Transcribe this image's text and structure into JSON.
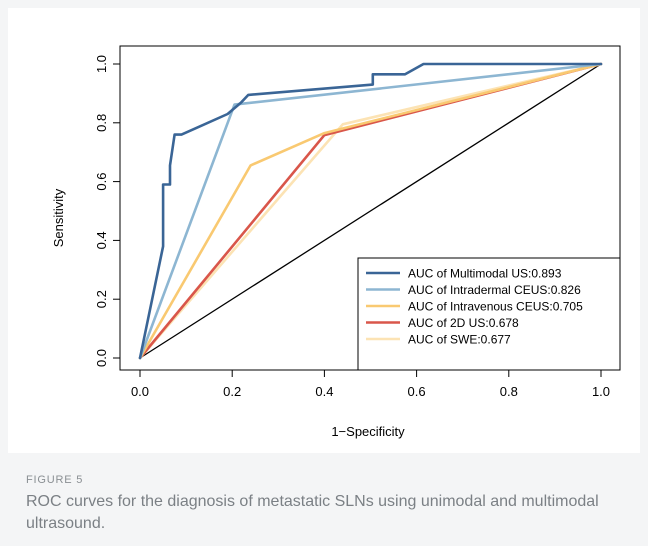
{
  "figure": {
    "label": "FIGURE 5",
    "caption": "ROC curves for the diagnosis of metastatic SLNs using unimodal and multimodal ultrasound."
  },
  "chart_data": {
    "type": "line",
    "xlabel": "1−Specificity",
    "ylabel": "Sensitivity",
    "xlim": [
      0,
      1
    ],
    "ylim": [
      0,
      1
    ],
    "xticks": [
      0.0,
      0.2,
      0.4,
      0.6,
      0.8,
      1.0
    ],
    "yticks": [
      0.0,
      0.2,
      0.4,
      0.6,
      0.8,
      1.0
    ],
    "xtick_labels": [
      "0.0",
      "0.2",
      "0.4",
      "0.6",
      "0.8",
      "1.0"
    ],
    "ytick_labels": [
      "0.0",
      "0.2",
      "0.4",
      "0.6",
      "0.8",
      "1.0"
    ],
    "grid": false,
    "legend_position": "bottom-right",
    "reference_line": {
      "x": [
        0,
        1
      ],
      "y": [
        0,
        1
      ],
      "color": "#000000"
    },
    "series": [
      {
        "name": "AUC of Multimodal US:0.893",
        "color": "#3a6596",
        "x": [
          0,
          0.05,
          0.05,
          0.065,
          0.065,
          0.075,
          0.09,
          0.19,
          0.22,
          0.235,
          0.505,
          0.505,
          0.575,
          0.615,
          1.0
        ],
        "y": [
          0,
          0.38,
          0.59,
          0.59,
          0.655,
          0.76,
          0.76,
          0.83,
          0.87,
          0.895,
          0.93,
          0.965,
          0.965,
          1.0,
          1.0
        ]
      },
      {
        "name": "AUC of Intradermal CEUS:0.826",
        "color": "#8db6d2",
        "x": [
          0,
          0.205,
          1.0
        ],
        "y": [
          0,
          0.862,
          1.0
        ]
      },
      {
        "name": "AUC of Intravenous  CEUS:0.705",
        "color": "#f9c971",
        "x": [
          0,
          0.24,
          0.4,
          1.0
        ],
        "y": [
          0,
          0.655,
          0.765,
          1.0
        ]
      },
      {
        "name": "AUC of 2D US:0.678",
        "color": "#d9564a",
        "x": [
          0,
          0.4,
          1.0
        ],
        "y": [
          0,
          0.758,
          1.0
        ]
      },
      {
        "name": "AUC of SWE:0.677",
        "color": "#fce3b4",
        "x": [
          0,
          0.44,
          1.0
        ],
        "y": [
          0,
          0.795,
          1.0
        ]
      }
    ]
  }
}
